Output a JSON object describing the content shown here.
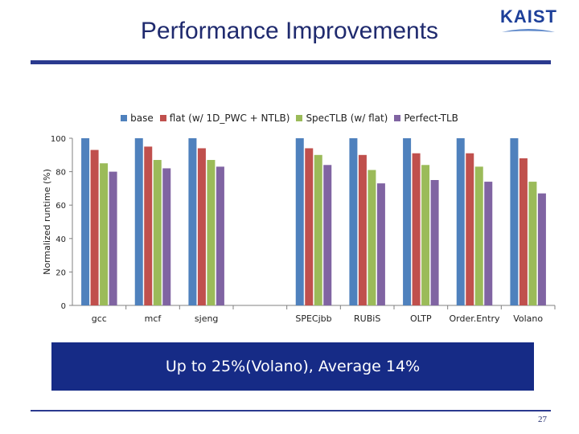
{
  "slide": {
    "title": "Performance Improvements",
    "logo_text": "KAIST",
    "banner": "Up to 25%(Volano), Average 14%",
    "page_number": "27"
  },
  "chart_data": {
    "type": "bar",
    "ylabel": "Normalized runtime (%)",
    "ylim": [
      0,
      100
    ],
    "yticks": [
      "0",
      "20",
      "40",
      "60",
      "80",
      "100"
    ],
    "legend_position": "top",
    "categories": [
      "gcc",
      "mcf",
      "sjeng",
      "",
      "SPECjbb",
      "RUBiS",
      "OLTP",
      "Order.Entry",
      "Volano"
    ],
    "series": [
      {
        "name": "base",
        "color": "#4f81bd",
        "values": [
          100,
          100,
          100,
          null,
          100,
          100,
          100,
          100,
          100
        ]
      },
      {
        "name": "flat (w/ 1D_PWC + NTLB)",
        "color": "#c0504d",
        "values": [
          93,
          95,
          94,
          null,
          94,
          90,
          91,
          91,
          88
        ]
      },
      {
        "name": "SpecTLB (w/ flat)",
        "color": "#9bbb59",
        "values": [
          85,
          87,
          87,
          null,
          90,
          81,
          84,
          83,
          74
        ]
      },
      {
        "name": "Perfect-TLB",
        "color": "#8064a2",
        "values": [
          80,
          82,
          83,
          null,
          84,
          73,
          75,
          74,
          67
        ]
      }
    ]
  }
}
